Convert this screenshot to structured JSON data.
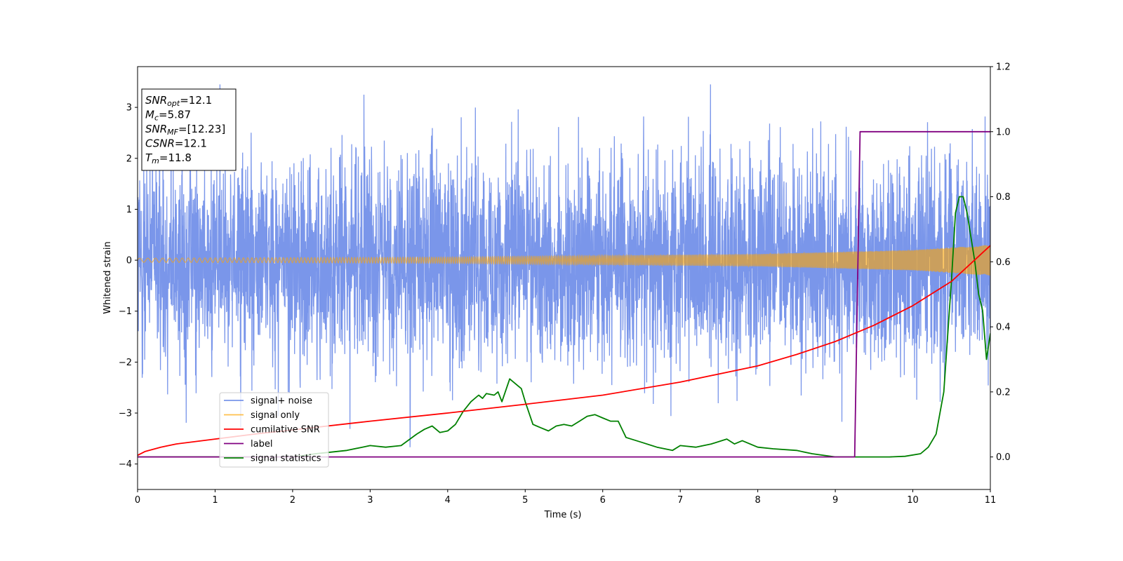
{
  "chart_data": {
    "type": "line",
    "xlabel": "Time (s)",
    "ylabel": "Whitened strain",
    "xlim": [
      0,
      11
    ],
    "ylim": [
      -4.5,
      3.8
    ],
    "y2lim": [
      -0.1,
      1.2
    ],
    "x_ticks": [
      "0",
      "1",
      "2",
      "3",
      "4",
      "5",
      "6",
      "7",
      "8",
      "9",
      "10",
      "11"
    ],
    "y_ticks": [
      "−4",
      "−3",
      "−2",
      "−1",
      "0",
      "1",
      "2",
      "3"
    ],
    "y2_ticks": [
      "0.0",
      "0.2",
      "0.4",
      "0.6",
      "0.8",
      "1.0",
      "1.2"
    ],
    "info_box": [
      {
        "sym": "SNR",
        "sub": "opt",
        "rest": "=12.1"
      },
      {
        "sym": "M",
        "sub": "c",
        "rest": "=5.87"
      },
      {
        "sym": "SNR",
        "sub": "MF",
        "rest": "=[12.23]"
      },
      {
        "sym": "CSNR",
        "sub": "",
        "rest": "=12.1"
      },
      {
        "sym": "T",
        "sub": "m",
        "rest": "=11.8"
      }
    ],
    "legend": {
      "placement": "lower-left",
      "entries": [
        {
          "label": "signal+ noise",
          "color": "#4169e1"
        },
        {
          "label": "signal only",
          "color": "#ffa500"
        },
        {
          "label": "cumilative SNR",
          "color": "#ff0000"
        },
        {
          "label": "label",
          "color": "#800080"
        },
        {
          "label": "signal statistics",
          "color": "#008000"
        }
      ]
    },
    "series": [
      {
        "name": "signal+ noise",
        "axis": "left",
        "color": "#4169e1",
        "kind": "noise",
        "noise_std": 1.0,
        "x_range": [
          0,
          11
        ]
      },
      {
        "name": "signal only",
        "axis": "left",
        "color": "#ffa500",
        "kind": "chirp",
        "amplitude": [
          [
            0,
            0.04
          ],
          [
            4,
            0.06
          ],
          [
            8,
            0.12
          ],
          [
            10,
            0.2
          ],
          [
            11,
            0.3
          ]
        ]
      },
      {
        "name": "cumilative SNR",
        "axis": "right",
        "color": "#ff0000",
        "x": [
          0,
          0.1,
          0.3,
          0.5,
          1,
          1.5,
          2,
          3,
          4,
          5,
          6,
          7,
          8,
          8.5,
          9,
          9.5,
          10,
          10.5,
          11
        ],
        "y": [
          0.005,
          0.017,
          0.03,
          0.04,
          0.055,
          0.07,
          0.083,
          0.11,
          0.135,
          0.162,
          0.19,
          0.23,
          0.28,
          0.315,
          0.355,
          0.405,
          0.465,
          0.54,
          0.65
        ]
      },
      {
        "name": "label",
        "axis": "right",
        "color": "#800080",
        "x": [
          0,
          9.25,
          9.32,
          11
        ],
        "y": [
          0,
          0,
          1,
          1
        ]
      },
      {
        "name": "signal statistics",
        "axis": "right",
        "color": "#008000",
        "x": [
          0,
          1,
          2,
          2.3,
          2.5,
          2.7,
          2.9,
          3.0,
          3.2,
          3.4,
          3.6,
          3.7,
          3.8,
          3.9,
          4.0,
          4.1,
          4.2,
          4.3,
          4.4,
          4.45,
          4.5,
          4.6,
          4.65,
          4.7,
          4.8,
          4.85,
          4.9,
          4.95,
          5.0,
          5.1,
          5.2,
          5.3,
          5.4,
          5.5,
          5.6,
          5.7,
          5.8,
          5.9,
          6.0,
          6.1,
          6.2,
          6.3,
          6.5,
          6.7,
          6.9,
          7.0,
          7.2,
          7.4,
          7.6,
          7.7,
          7.8,
          8.0,
          8.2,
          8.5,
          8.7,
          9.0,
          9.3,
          9.5,
          9.7,
          9.9,
          10.1,
          10.2,
          10.3,
          10.4,
          10.5,
          10.55,
          10.6,
          10.65,
          10.7,
          10.8,
          10.85,
          10.9,
          10.95,
          11.0
        ],
        "y": [
          0.0,
          0.0,
          0.0,
          0.01,
          0.015,
          0.02,
          0.03,
          0.035,
          0.03,
          0.035,
          0.07,
          0.085,
          0.095,
          0.075,
          0.08,
          0.1,
          0.14,
          0.17,
          0.19,
          0.18,
          0.195,
          0.19,
          0.2,
          0.17,
          0.24,
          0.23,
          0.22,
          0.21,
          0.17,
          0.1,
          0.09,
          0.08,
          0.095,
          0.1,
          0.095,
          0.11,
          0.125,
          0.13,
          0.12,
          0.11,
          0.11,
          0.06,
          0.045,
          0.03,
          0.02,
          0.035,
          0.03,
          0.04,
          0.055,
          0.04,
          0.05,
          0.03,
          0.025,
          0.02,
          0.01,
          0.0,
          0.0,
          0.0,
          0.0,
          0.002,
          0.01,
          0.03,
          0.07,
          0.2,
          0.55,
          0.75,
          0.8,
          0.8,
          0.75,
          0.6,
          0.5,
          0.45,
          0.3,
          0.38
        ]
      }
    ]
  }
}
